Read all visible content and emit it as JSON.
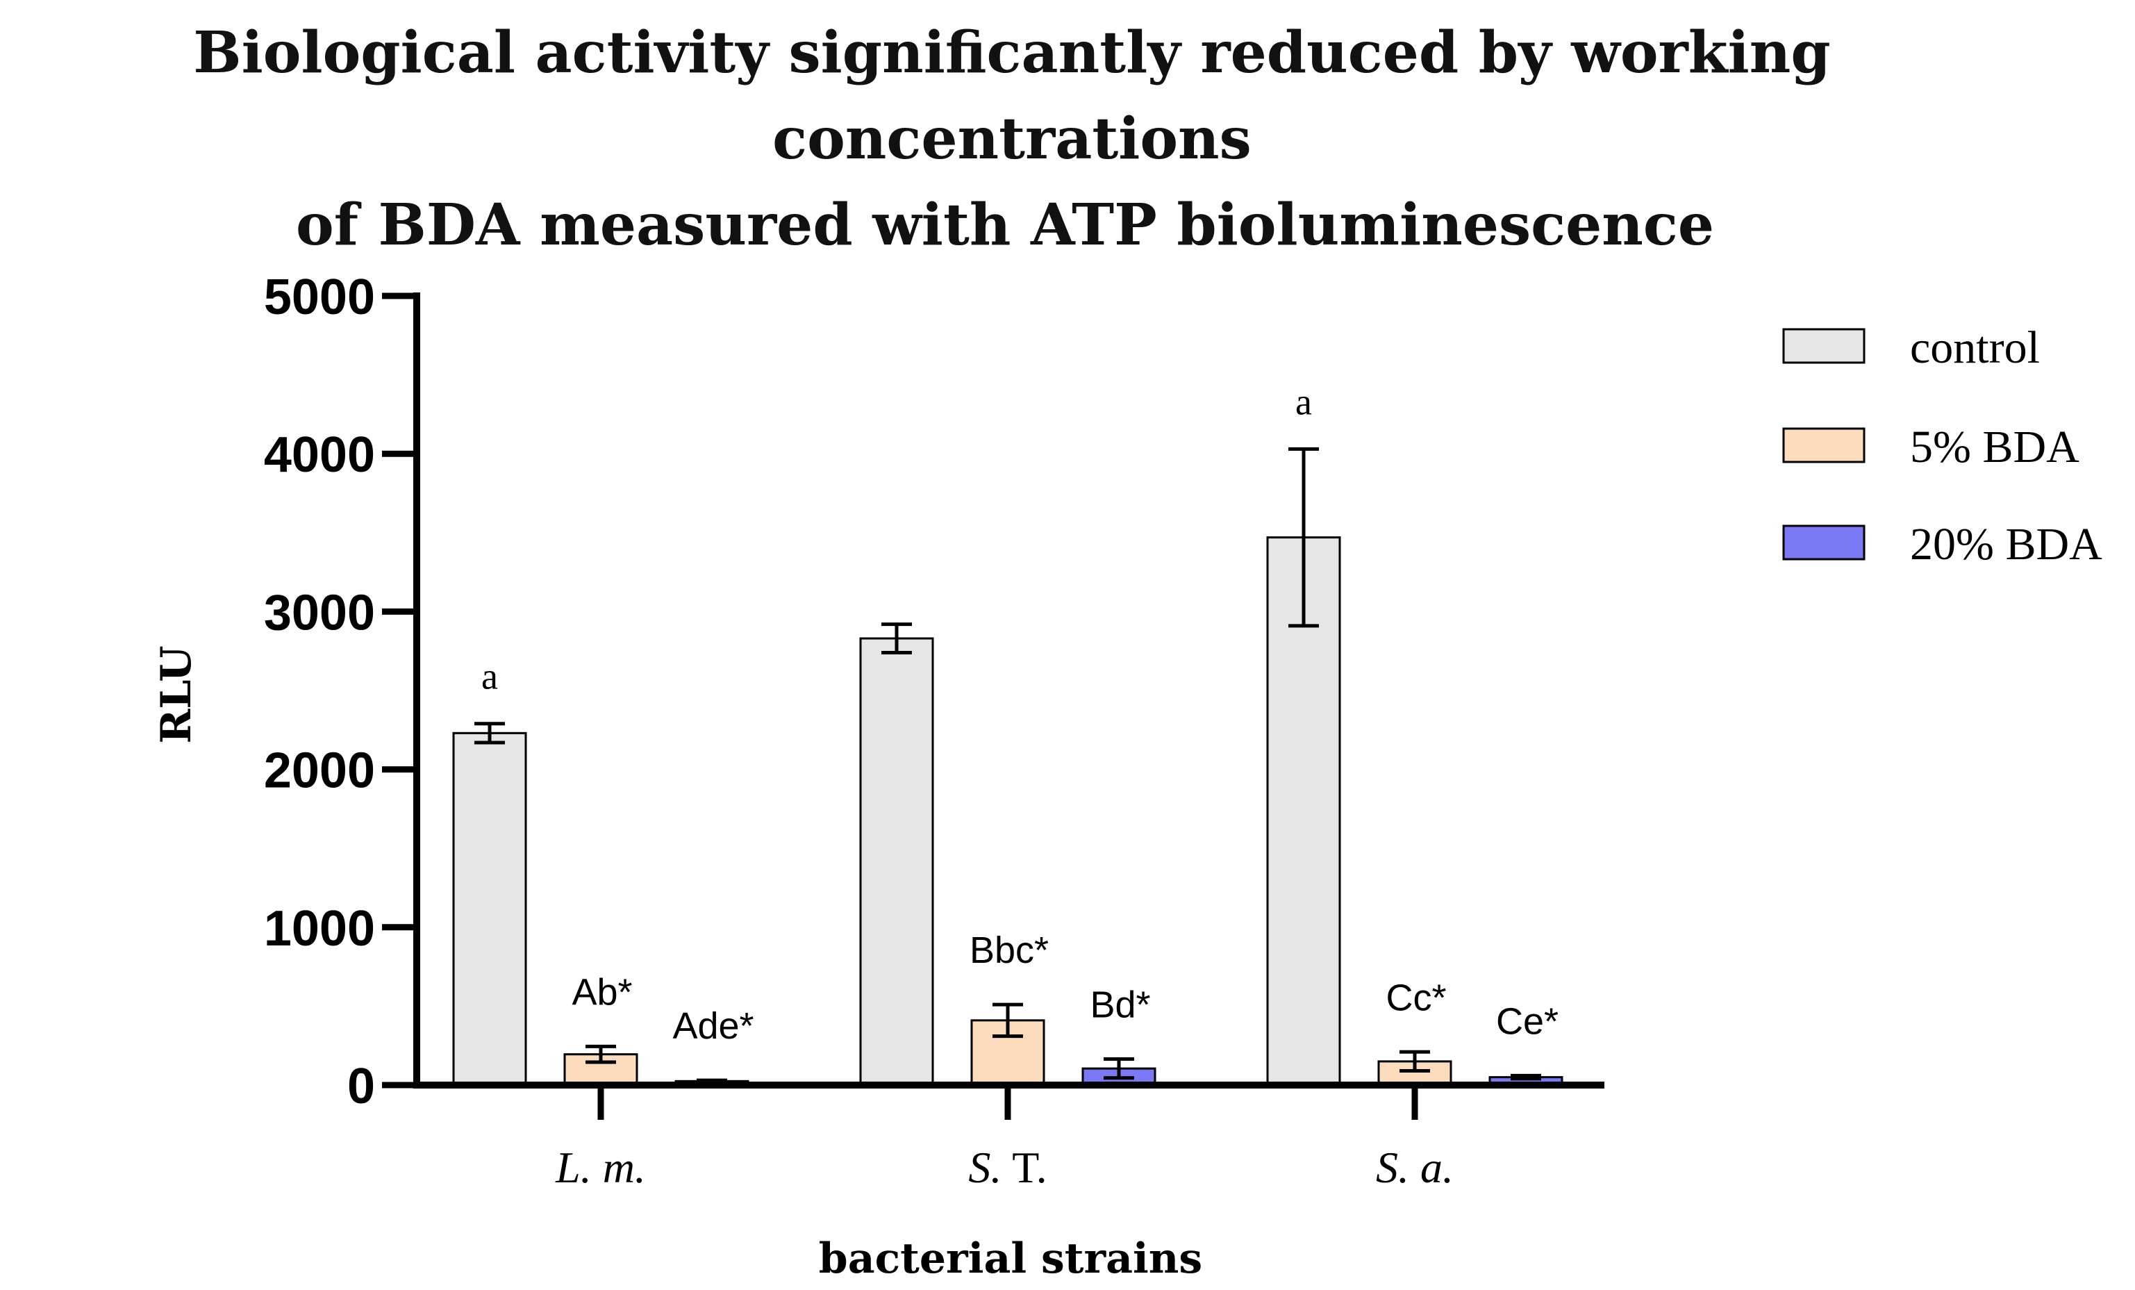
{
  "title": {
    "line1": "Biological activity significantly reduced by working concentrations",
    "line2": "of BDA measured with ATP bioluminescence"
  },
  "chart_data": {
    "type": "bar",
    "title": "Biological activity significantly reduced by working concentrations of BDA measured with ATP bioluminescence",
    "xlabel": "bacterial strains",
    "ylabel": "RLU",
    "ylim": [
      0,
      5000
    ],
    "yticks": [
      0,
      1000,
      2000,
      3000,
      4000,
      5000
    ],
    "categories": [
      {
        "prefix": "L. m.",
        "suffix": ""
      },
      {
        "prefix": "S.",
        "suffix": " T."
      },
      {
        "prefix": "S. a.",
        "suffix": ""
      }
    ],
    "legend_position": "top-right",
    "series": [
      {
        "name": "control",
        "color": "#e6e6e6",
        "values": [
          2230,
          2830,
          3470
        ],
        "errors": [
          60,
          90,
          560
        ],
        "labels": [
          "a",
          "",
          "a"
        ]
      },
      {
        "name": "5% BDA",
        "color": "#fddcbd",
        "values": [
          195,
          410,
          150
        ],
        "errors": [
          50,
          100,
          60
        ],
        "labels": [
          "Ab*",
          "Bbc*",
          "Cc*"
        ]
      },
      {
        "name": "20% BDA",
        "color": "#7b78f5",
        "values": [
          25,
          105,
          50
        ],
        "errors": [
          5,
          60,
          10
        ],
        "labels": [
          "Ade*",
          "Bd*",
          "Ce*"
        ]
      }
    ]
  }
}
